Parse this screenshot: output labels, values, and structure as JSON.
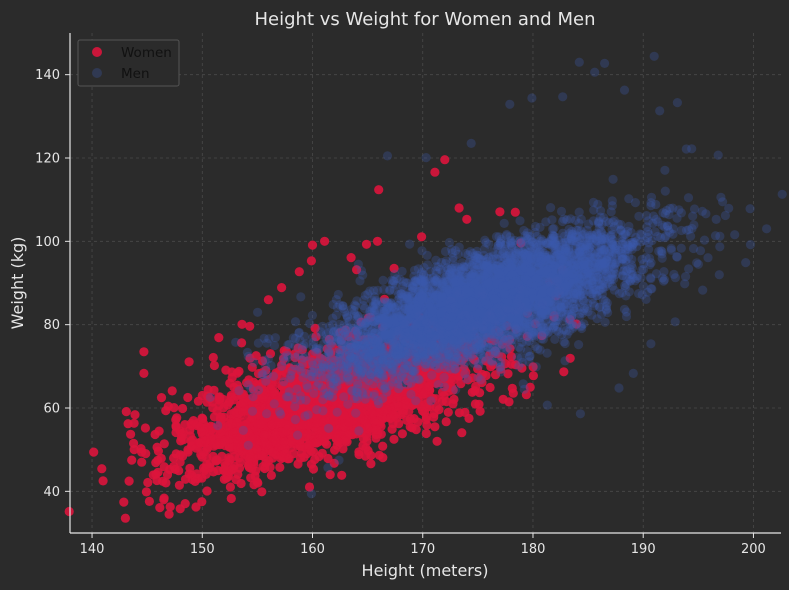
{
  "chart_data": {
    "type": "scatter",
    "title": "Height vs Weight for Women and Men",
    "xlabel": "Height (meters)",
    "ylabel": "Weight (kg)",
    "xlim": [
      138,
      202.5
    ],
    "ylim": [
      30,
      150
    ],
    "xticks": [
      140,
      150,
      160,
      170,
      180,
      190,
      200
    ],
    "yticks": [
      40,
      60,
      80,
      100,
      120,
      140
    ],
    "grid": true,
    "legend_position": "top-left",
    "series": [
      {
        "name": "Women",
        "color": "#dc143c",
        "opacity": 0.9,
        "n_points": 2500,
        "points": [
          [
            141.0,
            42.5
          ],
          [
            143.6,
            47.5
          ],
          [
            143.9,
            58.4
          ],
          [
            144.5,
            47.0
          ],
          [
            144.7,
            73.5
          ],
          [
            144.7,
            68.3
          ],
          [
            145.8,
            44.1
          ],
          [
            146.3,
            62.5
          ],
          [
            146.4,
            42.4
          ],
          [
            147.4,
            48.0
          ],
          [
            147.6,
            57.2
          ],
          [
            148.0,
            35.8
          ],
          [
            148.8,
            71.1
          ],
          [
            149.5,
            44.2
          ],
          [
            150.0,
            63.0
          ],
          [
            150.3,
            52.1
          ],
          [
            151.1,
            70.2
          ],
          [
            151.5,
            76.9
          ],
          [
            152.0,
            42.9
          ],
          [
            153.1,
            52.7
          ],
          [
            153.6,
            80.1
          ],
          [
            154.3,
            79.6
          ],
          [
            155.4,
            39.9
          ],
          [
            156.0,
            86.0
          ],
          [
            157.2,
            88.9
          ],
          [
            158.8,
            92.7
          ],
          [
            159.9,
            95.3
          ],
          [
            160.0,
            99.1
          ],
          [
            161.1,
            100.0
          ],
          [
            163.5,
            96.1
          ],
          [
            164.0,
            93.2
          ],
          [
            164.9,
            99.3
          ],
          [
            165.3,
            46.6
          ],
          [
            165.9,
            100.0
          ],
          [
            166.0,
            112.4
          ],
          [
            167.4,
            93.5
          ],
          [
            169.9,
            101.1
          ],
          [
            171.1,
            116.6
          ],
          [
            171.1,
            55.5
          ],
          [
            171.3,
            52.0
          ],
          [
            172.0,
            119.6
          ],
          [
            172.8,
            66.8
          ],
          [
            173.3,
            108.0
          ],
          [
            174.0,
            105.3
          ],
          [
            174.2,
            57.5
          ],
          [
            175.2,
            59.2
          ],
          [
            176.6,
            68.0
          ],
          [
            177.0,
            107.1
          ],
          [
            177.3,
            62.1
          ],
          [
            178.4,
            107.0
          ],
          [
            178.9,
            99.6
          ],
          [
            179.4,
            63.2
          ],
          [
            180.2,
            80.2
          ],
          [
            180.8,
            77.4
          ],
          [
            181.5,
            90.3
          ],
          [
            182.2,
            90.4
          ],
          [
            182.4,
            88.2
          ],
          [
            182.7,
            93.2
          ],
          [
            182.8,
            68.7
          ]
        ]
      },
      {
        "name": "Men",
        "color": "#3d59ab",
        "opacity": 0.3,
        "n_points": 5000,
        "points": [
          [
            159.9,
            39.4
          ],
          [
            161.4,
            45.7
          ],
          [
            162.4,
            47.5
          ],
          [
            166.8,
            120.5
          ],
          [
            170.3,
            120.1
          ],
          [
            174.4,
            123.5
          ],
          [
            177.9,
            132.9
          ],
          [
            179.9,
            134.4
          ],
          [
            182.7,
            134.7
          ],
          [
            184.2,
            143.0
          ],
          [
            185.6,
            140.6
          ],
          [
            186.5,
            142.7
          ],
          [
            188.3,
            136.3
          ],
          [
            191.0,
            144.4
          ],
          [
            191.5,
            131.3
          ],
          [
            193.1,
            133.3
          ],
          [
            194.4,
            122.2
          ],
          [
            196.8,
            120.7
          ],
          [
            197.2,
            109.5
          ],
          [
            198.3,
            101.6
          ],
          [
            199.3,
            94.9
          ],
          [
            196.9,
            92.0
          ],
          [
            195.4,
            88.3
          ],
          [
            192.9,
            80.7
          ],
          [
            190.7,
            75.4
          ],
          [
            189.1,
            68.3
          ],
          [
            187.8,
            64.8
          ],
          [
            184.3,
            58.6
          ],
          [
            181.3,
            60.7
          ],
          [
            179.2,
            64.5
          ]
        ]
      }
    ]
  }
}
